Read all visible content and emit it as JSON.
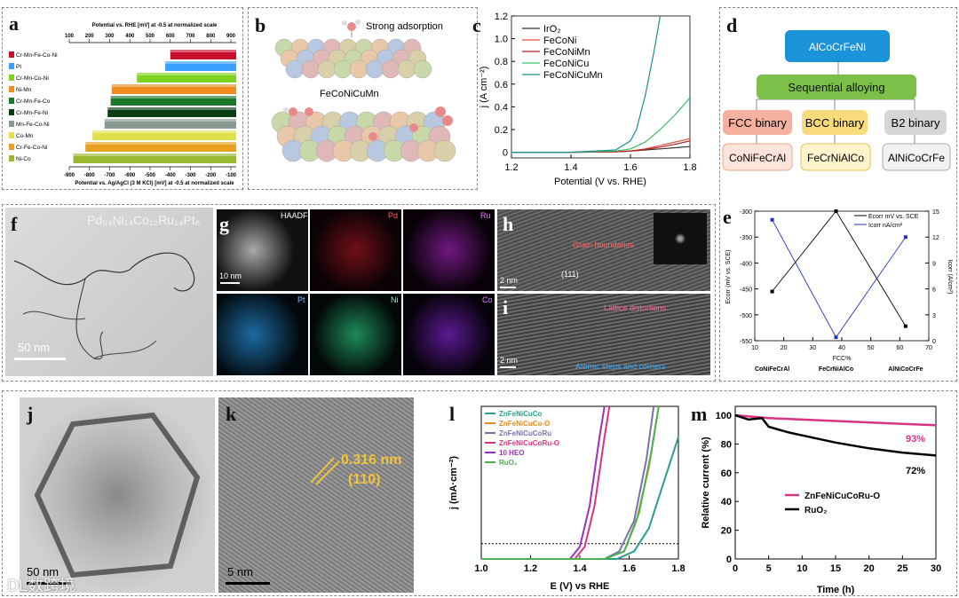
{
  "labels": {
    "a": "a",
    "b": "b",
    "c": "c",
    "d": "d",
    "e": "e",
    "f": "f",
    "g": "g",
    "h": "h",
    "i": "i",
    "j": "j",
    "k": "k",
    "l": "l",
    "m": "m"
  },
  "panel_a": {
    "top_axis_title": "Potential vs. RHE [mV] at -0.5 at normalized scale",
    "top_ticks": [
      "100",
      "200",
      "300",
      "400",
      "500",
      "600",
      "700",
      "800",
      "900"
    ],
    "bottom_axis_title": "Potential vs. Ag/AgCl (3 M KCl) [mV] at -0.5 at normalized scale",
    "bottom_ticks": [
      "-900",
      "-800",
      "-700",
      "-600",
      "-500",
      "-400",
      "-300",
      "-200",
      "-100"
    ],
    "bars": [
      {
        "name": "Cr-Mn-Fe-Co-Ni",
        "color": "#c8102e",
        "from": 600
      },
      {
        "name": "Pt",
        "color": "#3aa0ff",
        "from": 575
      },
      {
        "name": "Cr-Mn-Co-Ni",
        "color": "#7ed321",
        "from": 435
      },
      {
        "name": "Ni-Mn",
        "color": "#f08c1e",
        "from": 310
      },
      {
        "name": "Cr-Mn-Fe-Co",
        "color": "#1a7a2a",
        "from": 305
      },
      {
        "name": "Cr-Mn-Fe-Ni",
        "color": "#0b3d12",
        "from": 290
      },
      {
        "name": "Mn-Fe-Co-Ni",
        "color": "#8a9a90",
        "from": 275
      },
      {
        "name": "Co-Mn",
        "color": "#e0e04a",
        "from": 215
      },
      {
        "name": "Cr-Fe-Co-Ni",
        "color": "#e8a020",
        "from": 180
      },
      {
        "name": "Ni-Co",
        "color": "#9ab830",
        "from": 120
      }
    ]
  },
  "panel_b": {
    "title_top": "Strong adsorption",
    "title_mid": "FeCoNiCuMn"
  },
  "panel_c": {
    "chart_data": {
      "type": "line",
      "xlabel": "Potential (V vs. RHE)",
      "ylabel": "j (A cm⁻²)",
      "xlim": [
        1.2,
        1.8
      ],
      "ylim": [
        -0.05,
        1.2
      ],
      "xticks": [
        "1.2",
        "1.4",
        "1.6",
        "1.8"
      ],
      "yticks": [
        "0",
        "0.2",
        "0.4",
        "0.6",
        "0.8",
        "1.0",
        "1.2"
      ],
      "series": [
        {
          "name": "IrO₂",
          "color": "#333333",
          "x": [
            1.2,
            1.4,
            1.55,
            1.6,
            1.65,
            1.7,
            1.75,
            1.8
          ],
          "y": [
            0,
            0,
            0.005,
            0.01,
            0.02,
            0.03,
            0.04,
            0.05
          ]
        },
        {
          "name": "FeCoNi",
          "color": "#e8503a",
          "x": [
            1.2,
            1.4,
            1.55,
            1.6,
            1.65,
            1.7,
            1.75,
            1.8
          ],
          "y": [
            0,
            0,
            0.005,
            0.012,
            0.03,
            0.06,
            0.09,
            0.12
          ]
        },
        {
          "name": "FeCoNiMn",
          "color": "#b22222",
          "x": [
            1.2,
            1.4,
            1.55,
            1.6,
            1.65,
            1.7,
            1.75,
            1.8
          ],
          "y": [
            0,
            0,
            0.004,
            0.01,
            0.025,
            0.045,
            0.07,
            0.1
          ]
        },
        {
          "name": "FeCoNiCu",
          "color": "#3cbf6a",
          "x": [
            1.2,
            1.4,
            1.55,
            1.6,
            1.65,
            1.7,
            1.75,
            1.8
          ],
          "y": [
            0,
            0,
            0.01,
            0.03,
            0.09,
            0.2,
            0.33,
            0.48
          ]
        },
        {
          "name": "FeCoNiCuMn",
          "color": "#1f8f8f",
          "x": [
            1.2,
            1.4,
            1.55,
            1.6,
            1.62,
            1.65,
            1.68,
            1.7
          ],
          "y": [
            0,
            0,
            0.02,
            0.1,
            0.2,
            0.5,
            0.9,
            1.2
          ]
        }
      ]
    },
    "legend": [
      "IrO₂",
      "FeCoNi",
      "FeCoNiMn",
      "FeCoNiCu",
      "FeCoNiCuMn"
    ]
  },
  "panel_d": {
    "root": "AlCoCrFeNi",
    "middle": "Sequential alloying",
    "fcc": "FCC binary",
    "bcc": "BCC binary",
    "b2": "B2 binary",
    "fcc_leaf": "CoNiFeCrAl",
    "bcc_leaf": "FeCrNiAlCo",
    "b2_leaf": "AlNiCoCrFe"
  },
  "panel_e": {
    "chart_data": {
      "type": "line",
      "xlabel": "FCC%",
      "ylabel": "Ecorr (mV vs. SCE)",
      "y2label": "Icorr (A/cm²)",
      "categories": [
        "CoNiFeCrAl",
        "FeCrNiAlCo",
        "AlNiCoCrFe"
      ],
      "x": [
        16,
        38,
        62
      ],
      "xlim": [
        10,
        70
      ],
      "ylim": [
        -550,
        -300
      ],
      "y2lim": [
        0,
        15
      ],
      "xticks": [
        "10",
        "20",
        "30",
        "40",
        "50",
        "60",
        "70"
      ],
      "yticks": [
        "-300",
        "-350",
        "-400",
        "-450",
        "-500",
        "-550"
      ],
      "y2ticks": [
        "0",
        "3",
        "6",
        "9",
        "12",
        "15"
      ],
      "series": [
        {
          "name": "Ecorr mV vs. SCE",
          "color": "#000000",
          "axis": "left",
          "values": [
            -455,
            -300,
            -522
          ]
        },
        {
          "name": "Icorr nA/cm²",
          "color": "#2233bb",
          "axis": "right",
          "values": [
            14,
            0.4,
            12
          ]
        }
      ]
    },
    "legend1": "Ecorr mV vs. SCE",
    "legend2": "Icorr nA/cm²"
  },
  "panel_f": {
    "formula": "Pd₅₄Ni₁₄Co₁₂Ru₁₄Pt₆",
    "scale": "50 nm"
  },
  "panel_g": {
    "tiles": [
      "HAADF",
      "Pd",
      "Ru",
      "Pt",
      "Ni",
      "Co"
    ],
    "scale": "10 nm"
  },
  "panel_h": {
    "annot": "Grain boundaries",
    "plane": "(111)",
    "scale": "2 nm"
  },
  "panel_i": {
    "annot1": "Lattice distortions",
    "annot2": "Atomic steps and corners",
    "scale": "2 nm"
  },
  "panel_j": {
    "scale": "50 nm"
  },
  "panel_k": {
    "d": "0.316 nm",
    "plane": "(110)",
    "scale": "5 nm"
  },
  "panel_l": {
    "chart_data": {
      "type": "line",
      "xlabel": "E (V) vs RHE",
      "ylabel": "j (mA·cm⁻²)",
      "xlim": [
        1.0,
        1.8
      ],
      "xticks": [
        "1.0",
        "1.2",
        "1.4",
        "1.6",
        "1.8"
      ],
      "reference_line": 10,
      "series": [
        {
          "name": "ZnFeNiCuCo",
          "color": "#2a9d8f",
          "x": [
            1.0,
            1.55,
            1.62,
            1.68,
            1.74,
            1.8
          ],
          "y": [
            0,
            0,
            5,
            20,
            50,
            80
          ]
        },
        {
          "name": "ZnFeNiCuCo-O",
          "color": "#e08a1e",
          "x": [
            1.0,
            1.5,
            1.58,
            1.63,
            1.68,
            1.72
          ],
          "y": [
            0,
            0,
            5,
            25,
            60,
            100
          ]
        },
        {
          "name": "ZnFeNiCuCoRu",
          "color": "#7b6fb0",
          "x": [
            1.0,
            1.5,
            1.56,
            1.62,
            1.67,
            1.7
          ],
          "y": [
            0,
            0,
            5,
            25,
            65,
            100
          ]
        },
        {
          "name": "ZnFeNiCuCoRu-O",
          "color": "#d63384",
          "x": [
            1.0,
            1.38,
            1.42,
            1.46,
            1.5,
            1.52
          ],
          "y": [
            0,
            0,
            8,
            35,
            80,
            100
          ]
        },
        {
          "name": "10 HEO",
          "color": "#9b30c0",
          "x": [
            1.0,
            1.36,
            1.4,
            1.44,
            1.48,
            1.5
          ],
          "y": [
            0,
            0,
            8,
            35,
            80,
            100
          ]
        },
        {
          "name": "RuO₂",
          "color": "#4caf50",
          "x": [
            1.0,
            1.5,
            1.58,
            1.64,
            1.69,
            1.72
          ],
          "y": [
            0,
            0,
            5,
            30,
            70,
            100
          ]
        }
      ]
    },
    "legend": [
      "ZnFeNiCuCo",
      "ZnFeNiCuCo-O",
      "ZnFeNiCuCoRu",
      "ZnFeNiCuCoRu-O",
      "10 HEO",
      "RuO₂"
    ]
  },
  "panel_m": {
    "chart_data": {
      "type": "line",
      "xlabel": "Time (h)",
      "ylabel": "Relative current (%)",
      "xlim": [
        0,
        30
      ],
      "ylim": [
        0,
        100
      ],
      "xticks": [
        "0",
        "5",
        "10",
        "15",
        "20",
        "25",
        "30"
      ],
      "yticks": [
        "0",
        "20",
        "40",
        "60",
        "80",
        "100"
      ],
      "series": [
        {
          "name": "ZnFeNiCuCoRu-O",
          "color": "#d63384",
          "x": [
            0,
            5,
            10,
            15,
            20,
            25,
            30
          ],
          "y": [
            100,
            98,
            97,
            96,
            95,
            94,
            93
          ]
        },
        {
          "name": "RuO₂",
          "color": "#000000",
          "x": [
            0,
            2,
            4,
            5,
            8,
            10,
            15,
            20,
            25,
            30
          ],
          "y": [
            100,
            97,
            98,
            92,
            88,
            86,
            81,
            77,
            74,
            72
          ]
        }
      ]
    },
    "legend": [
      "ZnFeNiCuCoRu-O",
      "RuO₂"
    ],
    "end_labels": [
      "93%",
      "72%"
    ]
  },
  "watermark": "DL数跨境"
}
